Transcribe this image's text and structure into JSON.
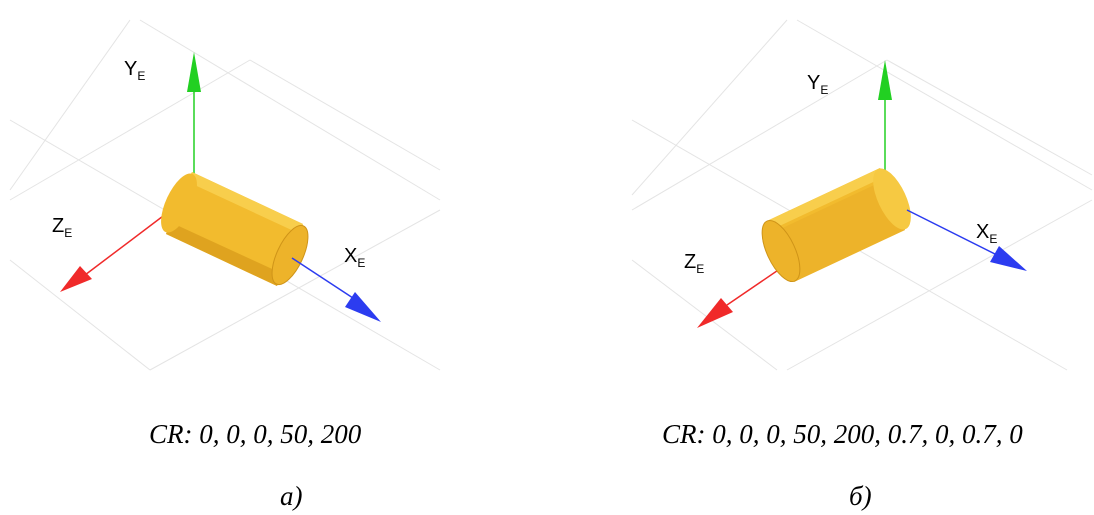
{
  "panels": [
    {
      "axes": {
        "y": "Y",
        "z": "Z",
        "x": "X",
        "subscript": "E"
      },
      "caption": "CR: 0, 0, 0, 50, 200",
      "tag": "a)"
    },
    {
      "axes": {
        "y": "Y",
        "z": "Z",
        "x": "X",
        "subscript": "E"
      },
      "caption": "CR: 0, 0, 0, 50, 200, 0.7, 0, 0.7, 0",
      "tag": "б)"
    }
  ],
  "colors": {
    "x_axis": "#2c3cf0",
    "y_axis": "#22d022",
    "z_axis": "#f02a2a",
    "cylinder": "#f2bb2e",
    "cylinder_dark": "#cf9418",
    "cylinder_light": "#f8d050",
    "grid": "#e4e4e4"
  },
  "icons": {
    "cylinder": "cylinder-icon",
    "arrow": "arrowhead-icon"
  }
}
